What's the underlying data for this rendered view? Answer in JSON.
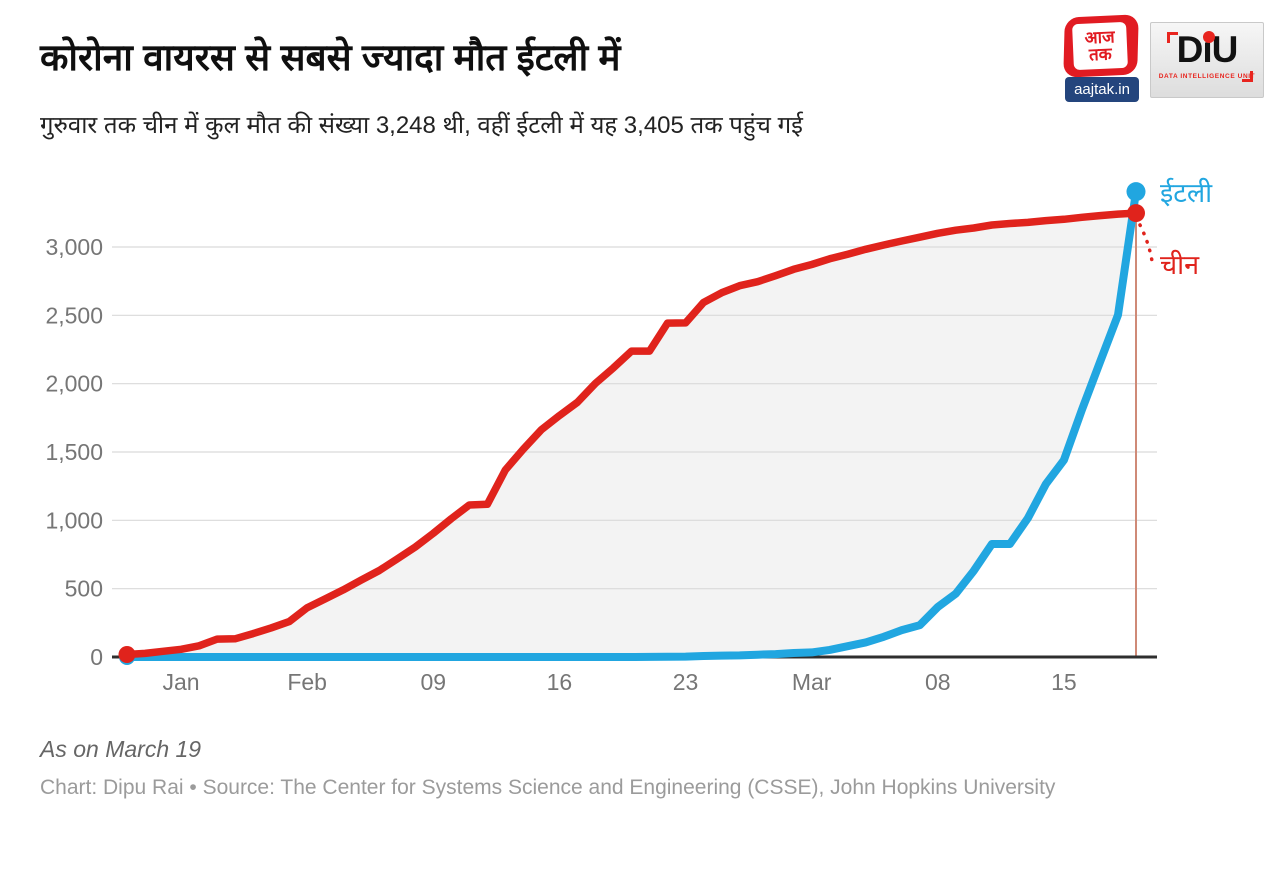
{
  "header": {
    "title": "कोरोना वायरस से सबसे ज्यादा मौत ईटली में",
    "subtitle": "गुरुवार तक चीन में कुल मौत की संख्या 3,248 थी, वहीं ईटली में यह 3,405 तक पहुंच गई"
  },
  "logos": {
    "aajtak": {
      "word_line1": "आज",
      "word_line2": "तक",
      "domain": "aajtak.in",
      "red": "#e11b22",
      "band_blue": "#24457d"
    },
    "diu": {
      "word": "DıU",
      "tagline": "DATA INTELLIGENCE UNIT",
      "accent": "#e8251f"
    }
  },
  "chart_data": {
    "type": "line",
    "title": "कोरोना वायरस से सबसे ज्यादा मौत ईटली में",
    "xlabel": "",
    "ylabel": "",
    "ylim": [
      0,
      3405
    ],
    "grid": "horizontal",
    "legend_position": "right-of-line-ends",
    "x_dates": [
      "Jan 23",
      "Jan 24",
      "Jan 25",
      "Jan 26",
      "Jan 27",
      "Jan 28",
      "Jan 29",
      "Jan 30",
      "Jan 31",
      "Feb 1",
      "Feb 2",
      "Feb 3",
      "Feb 4",
      "Feb 5",
      "Feb 6",
      "Feb 7",
      "Feb 8",
      "Feb 9",
      "Feb 10",
      "Feb 11",
      "Feb 12",
      "Feb 13",
      "Feb 14",
      "Feb 15",
      "Feb 16",
      "Feb 17",
      "Feb 18",
      "Feb 19",
      "Feb 20",
      "Feb 21",
      "Feb 22",
      "Feb 23",
      "Feb 24",
      "Feb 25",
      "Feb 26",
      "Feb 27",
      "Feb 28",
      "Feb 29",
      "Mar 1",
      "Mar 2",
      "Mar 3",
      "Mar 4",
      "Mar 5",
      "Mar 6",
      "Mar 7",
      "Mar 8",
      "Mar 9",
      "Mar 10",
      "Mar 11",
      "Mar 12",
      "Mar 13",
      "Mar 14",
      "Mar 15",
      "Mar 16",
      "Mar 17",
      "Mar 18",
      "Mar 19"
    ],
    "series": [
      {
        "name": "चीन",
        "color": "#e0231c",
        "final_value_label": "3,248",
        "values": [
          18,
          26,
          42,
          56,
          82,
          131,
          133,
          171,
          213,
          259,
          361,
          425,
          491,
          563,
          633,
          718,
          805,
          905,
          1012,
          1112,
          1117,
          1369,
          1521,
          1663,
          1766,
          1864,
          2003,
          2116,
          2238,
          2238,
          2443,
          2445,
          2595,
          2665,
          2717,
          2746,
          2790,
          2837,
          2872,
          2914,
          2947,
          2983,
          3015,
          3044,
          3072,
          3100,
          3123,
          3139,
          3161,
          3172,
          3180,
          3193,
          3203,
          3217,
          3230,
          3241,
          3248
        ]
      },
      {
        "name": "ईटली",
        "color": "#21a6e0",
        "final_value_label": "3,405",
        "values": [
          0,
          0,
          0,
          0,
          0,
          0,
          0,
          0,
          0,
          0,
          0,
          0,
          0,
          0,
          0,
          0,
          0,
          0,
          0,
          0,
          0,
          0,
          0,
          0,
          0,
          0,
          0,
          0,
          0,
          1,
          2,
          3,
          7,
          10,
          12,
          17,
          21,
          29,
          34,
          52,
          79,
          107,
          148,
          197,
          233,
          366,
          463,
          631,
          827,
          827,
          1016,
          1266,
          1441,
          1809,
          2158,
          2503,
          3405
        ]
      }
    ],
    "y_ticks": {
      "values": [
        0,
        500,
        1000,
        1500,
        2000,
        2500,
        3000
      ],
      "labels": [
        "0",
        "500",
        "1,000",
        "1,500",
        "2,000",
        "2,500",
        "3,000"
      ]
    },
    "x_ticks": [
      {
        "label": "Jan",
        "date": "Jan 26"
      },
      {
        "label": "Feb",
        "date": "Feb 2"
      },
      {
        "label": "09",
        "date": "Feb 9"
      },
      {
        "label": "16",
        "date": "Feb 16"
      },
      {
        "label": "23",
        "date": "Feb 23"
      },
      {
        "label": "Mar",
        "date": "Mar 1"
      },
      {
        "label": "08",
        "date": "Mar 8"
      },
      {
        "label": "15",
        "date": "Mar 15"
      }
    ],
    "style": {
      "area_fill": "#f3f3f3",
      "grid_color": "#dadada",
      "axis_text_color": "#767676",
      "baseline_color": "#2f2f2f",
      "marker_line_color": "#cf8a77"
    }
  },
  "footer": {
    "note": "As on March 19",
    "credit": "Chart: Dipu Rai • Source: The Center for Systems Science and Engineering (CSSE), John Hopkins University"
  }
}
